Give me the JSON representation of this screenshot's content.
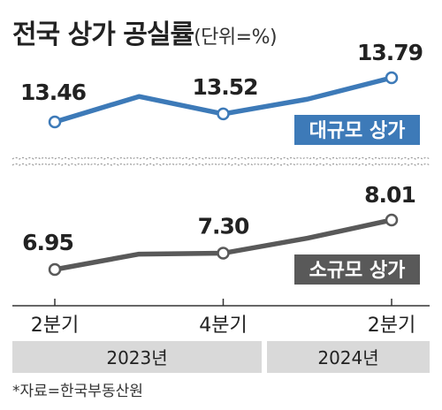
{
  "title": "전국 상가 공실률",
  "unit": "(단위=%)",
  "source": "*자료=한국부동산원",
  "colors": {
    "large": "#3d7ab8",
    "small": "#595959",
    "period_band": "#d9d9d9",
    "text": "#222222"
  },
  "chart_data": {
    "type": "line",
    "title": "전국 상가 공실률",
    "subtitle": "(단위=%)",
    "x": [
      "2023년 2분기",
      "2023년 3분기",
      "2023년 4분기",
      "2024년 1분기",
      "2024년 2분기"
    ],
    "tick_labels": [
      "2분기",
      "4분기",
      "2분기"
    ],
    "tick_indices": [
      0,
      2,
      4
    ],
    "year_groups": [
      {
        "label": "2023년",
        "start": 0,
        "end": 2
      },
      {
        "label": "2024년",
        "start": 3,
        "end": 4
      }
    ],
    "broken_axis": true,
    "grid": false,
    "series": [
      {
        "name": "대규모 상가",
        "values": [
          13.46,
          13.65,
          13.52,
          13.63,
          13.79
        ],
        "labeled_indices": [
          0,
          2,
          4
        ],
        "value_labels": [
          "13.46",
          "13.52",
          "13.79"
        ],
        "color": "#3d7ab8"
      },
      {
        "name": "소규모 상가",
        "values": [
          6.95,
          7.28,
          7.3,
          7.62,
          8.01
        ],
        "labeled_indices": [
          0,
          2,
          4
        ],
        "value_labels": [
          "6.95",
          "7.30",
          "8.01"
        ],
        "color": "#595959"
      }
    ],
    "legend": "inline-right"
  }
}
